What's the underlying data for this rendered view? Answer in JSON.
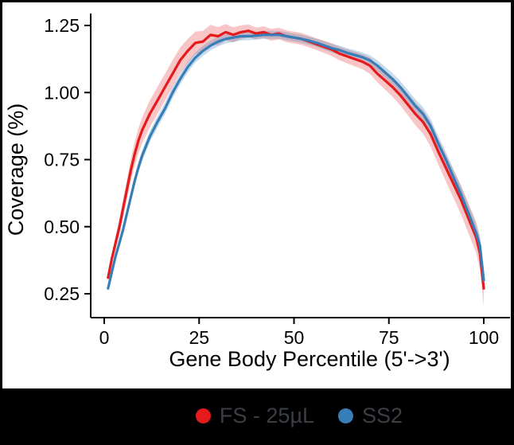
{
  "colors": {
    "background": "#000000",
    "panel": "#ffffff",
    "axis": "#000000",
    "legend_text": "#3a3f45",
    "red": "#e41a1c",
    "blue": "#377eb8",
    "red_band": "rgba(228,26,28,0.25)",
    "blue_band": "rgba(55,126,184,0.28)"
  },
  "legend": {
    "items": [
      {
        "label": "FS - 25µL",
        "color": "#e41a1c"
      },
      {
        "label": "SS2",
        "color": "#377eb8"
      }
    ]
  },
  "chart_data": {
    "type": "line",
    "title": "",
    "xlabel": "Gene Body Percentile (5'->3')",
    "ylabel": "Coverage (%)",
    "xlim": [
      0,
      100
    ],
    "ylim": [
      0.2,
      1.3
    ],
    "xticks": [
      0,
      25,
      50,
      75,
      100
    ],
    "yticks": [
      0.25,
      0.5,
      0.75,
      1.0,
      1.25
    ],
    "ytick_labels": [
      "0.25",
      "0.50",
      "0.75",
      "1.00",
      "1.25"
    ],
    "grid": false,
    "legend_position": "bottom",
    "x": [
      1,
      2,
      3,
      4,
      5,
      6,
      7,
      8,
      9,
      10,
      12,
      14,
      16,
      18,
      20,
      22,
      24,
      26,
      28,
      30,
      32,
      34,
      36,
      38,
      40,
      42,
      44,
      46,
      48,
      50,
      52,
      54,
      56,
      58,
      60,
      62,
      64,
      66,
      68,
      70,
      72,
      74,
      76,
      78,
      80,
      82,
      84,
      86,
      88,
      90,
      92,
      94,
      96,
      98,
      99,
      100
    ],
    "series": [
      {
        "name": "FS - 25µL",
        "color": "#e41a1c",
        "band_color": "rgba(228,26,28,0.25)",
        "values": [
          0.31,
          0.38,
          0.44,
          0.5,
          0.57,
          0.64,
          0.71,
          0.77,
          0.82,
          0.86,
          0.92,
          0.97,
          1.02,
          1.07,
          1.12,
          1.155,
          1.185,
          1.19,
          1.215,
          1.21,
          1.225,
          1.215,
          1.225,
          1.23,
          1.22,
          1.225,
          1.215,
          1.22,
          1.21,
          1.205,
          1.2,
          1.19,
          1.18,
          1.17,
          1.16,
          1.145,
          1.135,
          1.125,
          1.115,
          1.1,
          1.07,
          1.045,
          1.02,
          0.99,
          0.955,
          0.92,
          0.89,
          0.845,
          0.78,
          0.72,
          0.66,
          0.6,
          0.53,
          0.46,
          0.4,
          0.27
        ],
        "band": [
          0.012,
          0.018,
          0.025,
          0.03,
          0.034,
          0.038,
          0.042,
          0.045,
          0.047,
          0.048,
          0.05,
          0.05,
          0.05,
          0.05,
          0.048,
          0.045,
          0.042,
          0.04,
          0.037,
          0.034,
          0.03,
          0.028,
          0.026,
          0.024,
          0.022,
          0.022,
          0.022,
          0.022,
          0.022,
          0.022,
          0.022,
          0.022,
          0.022,
          0.023,
          0.024,
          0.025,
          0.026,
          0.027,
          0.028,
          0.03,
          0.032,
          0.034,
          0.036,
          0.038,
          0.04,
          0.042,
          0.044,
          0.046,
          0.048,
          0.05,
          0.052,
          0.054,
          0.056,
          0.058,
          0.06,
          0.065
        ]
      },
      {
        "name": "SS2",
        "color": "#377eb8",
        "band_color": "rgba(55,126,184,0.28)",
        "values": [
          0.27,
          0.33,
          0.39,
          0.44,
          0.49,
          0.55,
          0.61,
          0.67,
          0.72,
          0.765,
          0.835,
          0.89,
          0.94,
          1.0,
          1.05,
          1.095,
          1.13,
          1.155,
          1.175,
          1.19,
          1.2,
          1.205,
          1.21,
          1.21,
          1.212,
          1.215,
          1.215,
          1.215,
          1.21,
          1.205,
          1.2,
          1.193,
          1.185,
          1.175,
          1.165,
          1.158,
          1.148,
          1.14,
          1.132,
          1.12,
          1.1,
          1.075,
          1.05,
          1.02,
          0.985,
          0.95,
          0.92,
          0.875,
          0.81,
          0.75,
          0.685,
          0.62,
          0.55,
          0.475,
          0.43,
          0.3
        ],
        "band": [
          0.008,
          0.01,
          0.012,
          0.014,
          0.016,
          0.017,
          0.018,
          0.019,
          0.02,
          0.02,
          0.021,
          0.021,
          0.021,
          0.021,
          0.02,
          0.02,
          0.019,
          0.019,
          0.018,
          0.018,
          0.017,
          0.016,
          0.016,
          0.015,
          0.015,
          0.015,
          0.015,
          0.015,
          0.015,
          0.015,
          0.015,
          0.015,
          0.015,
          0.016,
          0.016,
          0.017,
          0.017,
          0.018,
          0.018,
          0.019,
          0.02,
          0.021,
          0.022,
          0.023,
          0.024,
          0.025,
          0.026,
          0.027,
          0.028,
          0.029,
          0.03,
          0.031,
          0.032,
          0.033,
          0.034,
          0.035
        ]
      }
    ]
  }
}
